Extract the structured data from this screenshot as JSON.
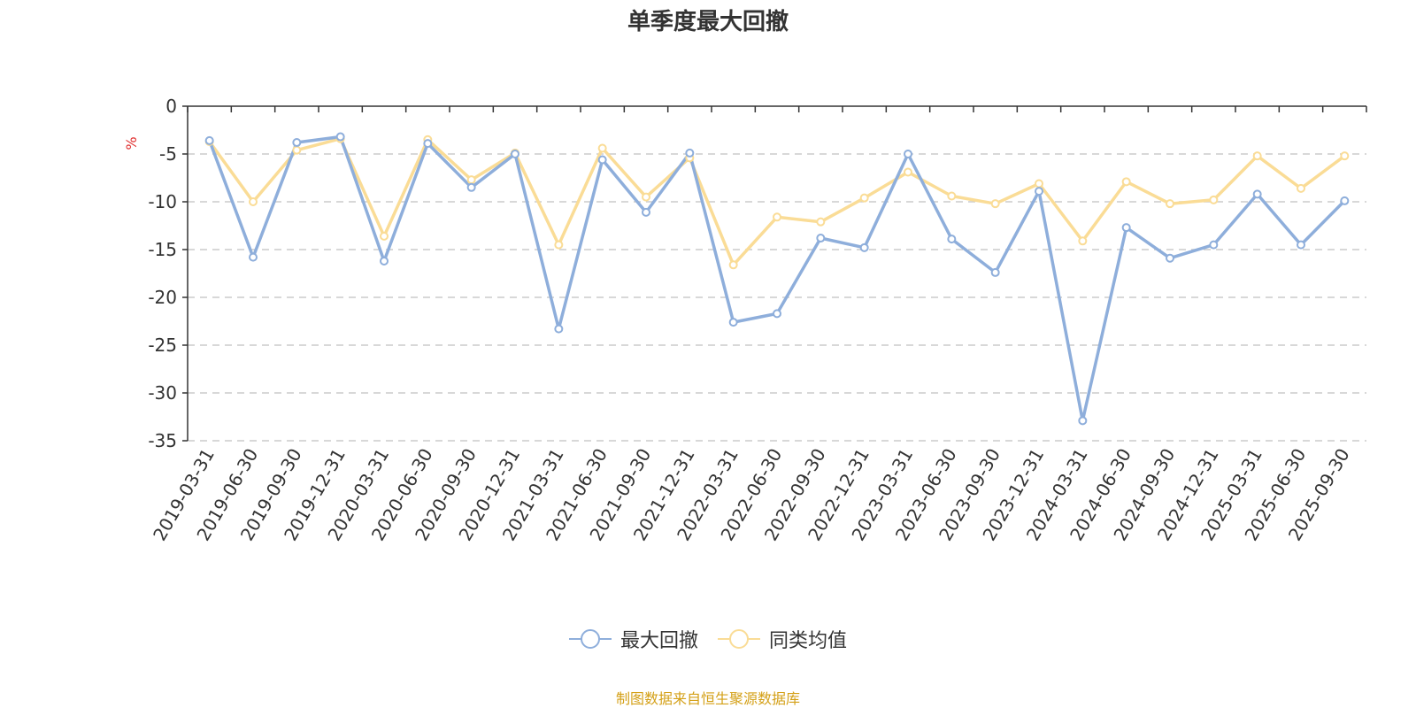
{
  "chart_data": {
    "type": "line",
    "title": "单季度最大回撤",
    "ylabel": "%",
    "ylim": [
      -35,
      0
    ],
    "yticks": [
      0,
      -5,
      -10,
      -15,
      -20,
      -25,
      -30,
      -35
    ],
    "grid": "horizontal-dashed",
    "legend_position": "bottom-center",
    "categories": [
      "2019-03-31",
      "2019-06-30",
      "2019-09-30",
      "2019-12-31",
      "2020-03-31",
      "2020-06-30",
      "2020-09-30",
      "2020-12-31",
      "2021-03-31",
      "2021-06-30",
      "2021-09-30",
      "2021-12-31",
      "2022-03-31",
      "2022-06-30",
      "2022-09-30",
      "2022-12-31",
      "2023-03-31",
      "2023-06-30",
      "2023-09-30",
      "2023-12-31",
      "2024-03-31",
      "2024-06-30",
      "2024-09-30",
      "2024-12-31",
      "2025-03-31",
      "2025-06-30",
      "2025-09-30"
    ],
    "series": [
      {
        "name": "最大回撤",
        "color": "#8eaedb",
        "values": [
          -3.6,
          -15.8,
          -3.8,
          -3.2,
          -16.2,
          -3.9,
          -8.5,
          -5.0,
          -23.3,
          -5.6,
          -11.1,
          -4.9,
          -22.6,
          -21.7,
          -13.8,
          -14.8,
          -5.0,
          -13.9,
          -17.4,
          -8.9,
          -32.9,
          -12.7,
          -15.9,
          -14.5,
          -9.2,
          -14.5,
          -9.9
        ]
      },
      {
        "name": "同类均值",
        "color": "#fadc96",
        "values": [
          -3.7,
          -10.0,
          -4.6,
          -3.4,
          -13.6,
          -3.5,
          -7.7,
          -4.9,
          -14.5,
          -4.4,
          -9.5,
          -5.4,
          -16.6,
          -11.6,
          -12.1,
          -9.6,
          -6.9,
          -9.4,
          -10.2,
          -8.1,
          -14.1,
          -7.9,
          -10.2,
          -9.8,
          -5.2,
          -8.6,
          -5.2
        ]
      }
    ]
  },
  "source_note": "制图数据来自恒生聚源数据库"
}
